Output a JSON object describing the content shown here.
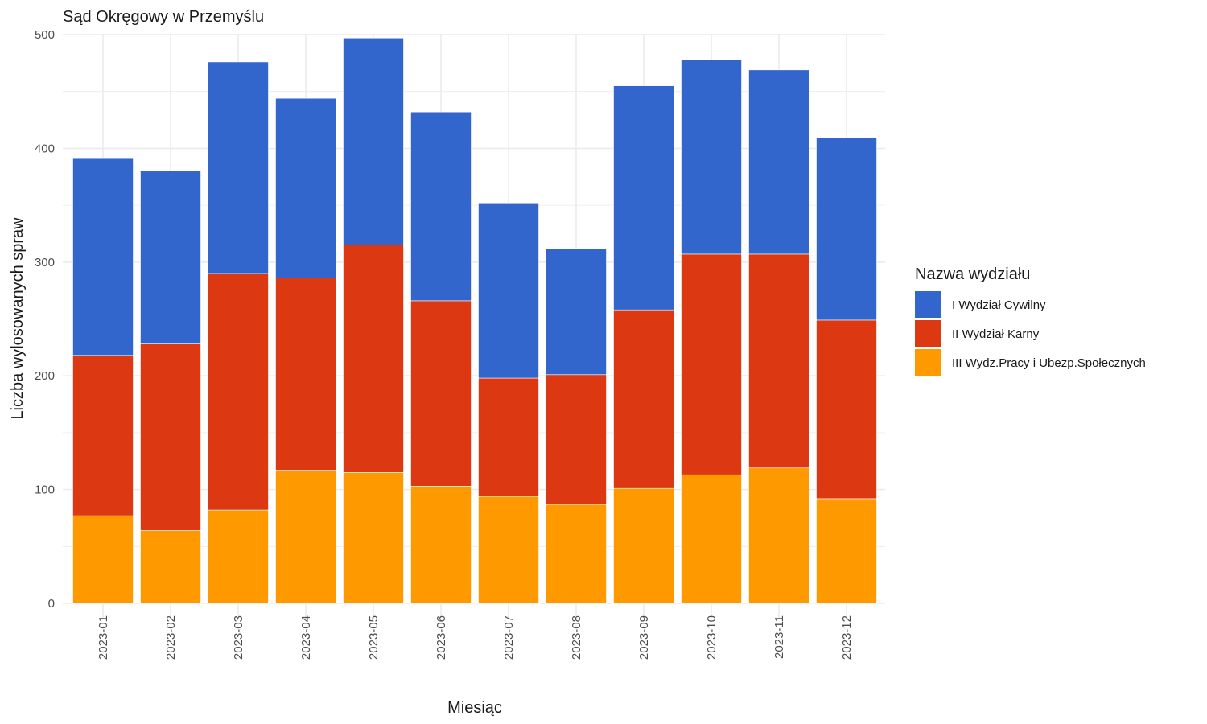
{
  "chart_data": {
    "type": "bar",
    "stacked": true,
    "title": "Sąd Okręgowy w Przemyślu",
    "xlabel": "Miesiąc",
    "ylabel": "Liczba wylosowanych spraw",
    "categories": [
      "2023-01",
      "2023-02",
      "2023-03",
      "2023-04",
      "2023-05",
      "2023-06",
      "2023-07",
      "2023-08",
      "2023-09",
      "2023-10",
      "2023-11",
      "2023-12"
    ],
    "ylim": [
      0,
      500
    ],
    "yticks": [
      0,
      100,
      200,
      300,
      400,
      500
    ],
    "grid": true,
    "legend": {
      "title": "Nazwa wydziału",
      "position": "right"
    },
    "series": [
      {
        "name": "III Wydz.Pracy i Ubezp.Społecznych",
        "color": "#FF9900",
        "values": [
          77,
          64,
          82,
          117,
          115,
          103,
          94,
          87,
          101,
          113,
          119,
          92
        ]
      },
      {
        "name": "II Wydział Karny",
        "color": "#DC3912",
        "values": [
          141,
          164,
          208,
          169,
          200,
          163,
          104,
          114,
          157,
          194,
          188,
          157
        ]
      },
      {
        "name": "I Wydział Cywilny",
        "color": "#3366CC",
        "values": [
          173,
          152,
          186,
          158,
          182,
          166,
          154,
          111,
          197,
          171,
          162,
          160
        ]
      }
    ],
    "legend_order": [
      "I Wydział Cywilny",
      "II Wydział Karny",
      "III Wydz.Pracy i Ubezp.Społecznych"
    ]
  }
}
